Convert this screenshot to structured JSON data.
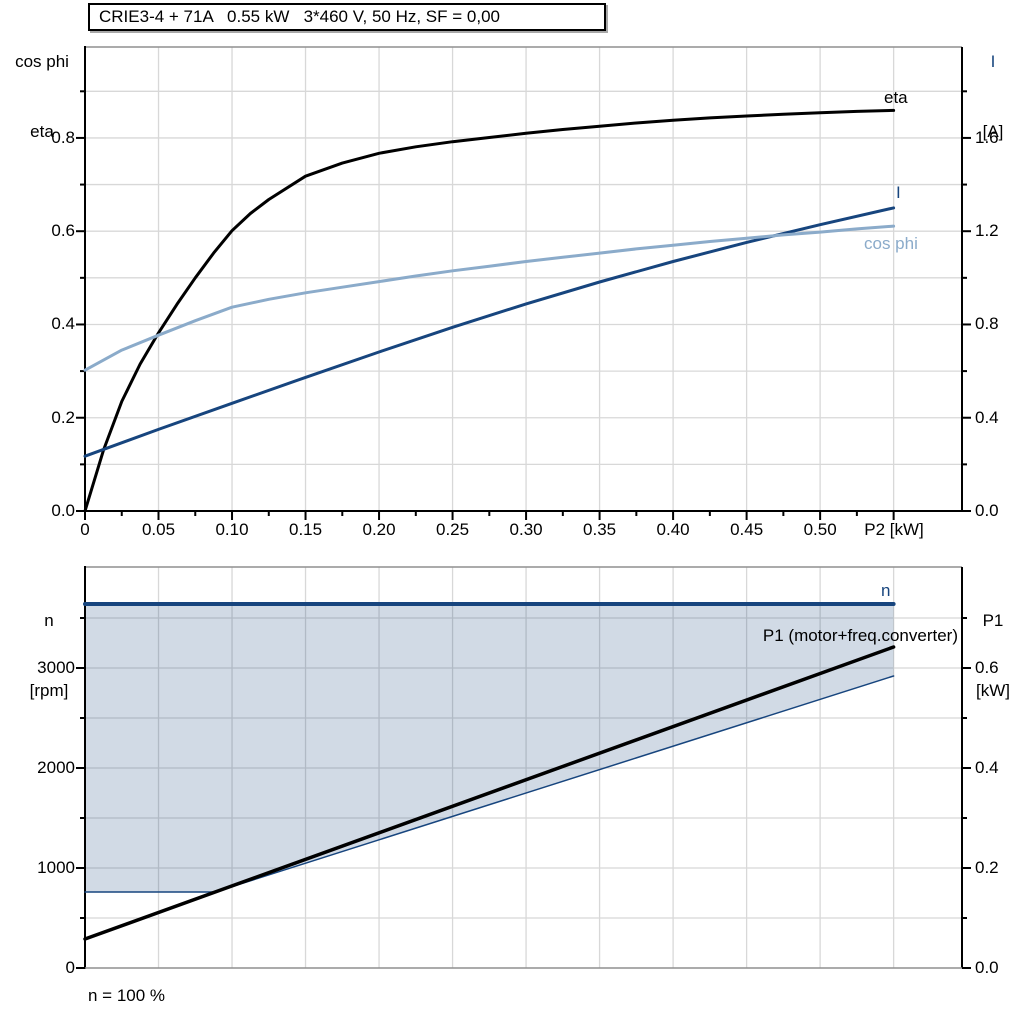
{
  "title_box": {
    "text": "CRIE3-4 + 71A   0.55 kW   3*460 V, 50 Hz, SF = 0,00"
  },
  "footer": {
    "text": "n = 100 %"
  },
  "colors": {
    "navy": "#17457E",
    "steel": "#8BABCA",
    "black": "#000000",
    "grid": "#D8D8D8",
    "frame": "#8F8F8F",
    "area_fill": "rgba(23,69,126,0.20)",
    "background": "#FFFFFF"
  },
  "chart_data": [
    {
      "type": "line",
      "xlabel": "P2 [kW]",
      "xlim": [
        0,
        0.5965
      ],
      "x_axis": {
        "tick_values": [
          0,
          0.05,
          0.1,
          0.15,
          0.2,
          0.25,
          0.3,
          0.35,
          0.4,
          0.45,
          0.5,
          0.55
        ],
        "tick_labels": [
          "0",
          "0.05",
          "0.10",
          "0.15",
          "0.20",
          "0.25",
          "0.30",
          "0.35",
          "0.40",
          "0.45",
          "0.50",
          ""
        ],
        "minor_step": 0.025,
        "minor_max": 0.55,
        "grid_step": 0.05,
        "grid_max": 0.55
      },
      "left_axis": {
        "header_lines": [
          "cos phi",
          "eta"
        ],
        "lim": [
          0,
          0.995
        ],
        "tick_values": [
          0,
          0.2,
          0.4,
          0.6,
          0.8
        ],
        "tick_labels": [
          "0.0",
          "0.2",
          "0.4",
          "0.6",
          "0.8"
        ],
        "minor_step": 0.1,
        "minor_max": 0.9,
        "grid_step": 0.1,
        "grid_max": 0.9
      },
      "right_axis": {
        "header_lines": [
          "I",
          "[A]"
        ],
        "lim": [
          0,
          1.99
        ],
        "tick_values": [
          0,
          0.4,
          0.8,
          1.2,
          1.6
        ],
        "tick_labels": [
          "0.0",
          "0.4",
          "0.8",
          "1.2",
          "1.6"
        ],
        "minor_step": 0.2,
        "minor_max": 1.8
      },
      "series": [
        {
          "name": "eta",
          "axis": "left",
          "color": "#000000",
          "width": 3,
          "points": [
            [
              0,
              0
            ],
            [
              0.0125,
              0.13
            ],
            [
              0.025,
              0.235
            ],
            [
              0.0375,
              0.315
            ],
            [
              0.05,
              0.382
            ],
            [
              0.0625,
              0.443
            ],
            [
              0.075,
              0.5
            ],
            [
              0.0875,
              0.553
            ],
            [
              0.1,
              0.601
            ],
            [
              0.1125,
              0.638
            ],
            [
              0.125,
              0.668
            ],
            [
              0.15,
              0.718
            ],
            [
              0.175,
              0.746
            ],
            [
              0.2,
              0.767
            ],
            [
              0.225,
              0.781
            ],
            [
              0.25,
              0.792
            ],
            [
              0.275,
              0.801
            ],
            [
              0.3,
              0.81
            ],
            [
              0.325,
              0.818
            ],
            [
              0.35,
              0.825
            ],
            [
              0.375,
              0.832
            ],
            [
              0.4,
              0.838
            ],
            [
              0.425,
              0.843
            ],
            [
              0.45,
              0.847
            ],
            [
              0.475,
              0.851
            ],
            [
              0.5,
              0.854
            ],
            [
              0.525,
              0.857
            ],
            [
              0.55,
              0.859
            ]
          ]
        },
        {
          "name": "I",
          "axis": "right",
          "color": "#17457E",
          "width": 3,
          "points": [
            [
              0,
              0.235
            ],
            [
              0.05,
              0.35
            ],
            [
              0.1,
              0.462
            ],
            [
              0.15,
              0.573
            ],
            [
              0.2,
              0.682
            ],
            [
              0.25,
              0.788
            ],
            [
              0.3,
              0.888
            ],
            [
              0.35,
              0.982
            ],
            [
              0.4,
              1.07
            ],
            [
              0.45,
              1.152
            ],
            [
              0.5,
              1.228
            ],
            [
              0.55,
              1.3
            ]
          ]
        },
        {
          "name": "cos phi",
          "axis": "left",
          "color": "#8BABCA",
          "width": 3,
          "points": [
            [
              0,
              0.302
            ],
            [
              0.025,
              0.345
            ],
            [
              0.05,
              0.377
            ],
            [
              0.075,
              0.408
            ],
            [
              0.1,
              0.437
            ],
            [
              0.125,
              0.454
            ],
            [
              0.15,
              0.468
            ],
            [
              0.175,
              0.48
            ],
            [
              0.2,
              0.492
            ],
            [
              0.225,
              0.504
            ],
            [
              0.25,
              0.515
            ],
            [
              0.275,
              0.525
            ],
            [
              0.3,
              0.535
            ],
            [
              0.325,
              0.544
            ],
            [
              0.35,
              0.553
            ],
            [
              0.375,
              0.562
            ],
            [
              0.4,
              0.57
            ],
            [
              0.425,
              0.578
            ],
            [
              0.45,
              0.585
            ],
            [
              0.475,
              0.592
            ],
            [
              0.5,
              0.598
            ],
            [
              0.525,
              0.605
            ],
            [
              0.55,
              0.611
            ]
          ]
        }
      ]
    },
    {
      "type": "area",
      "xlabel": "",
      "xlim": [
        0,
        0.5965
      ],
      "x_axis": {
        "tick_values": [],
        "tick_labels": [],
        "minor_step": 0,
        "minor_max": 0,
        "grid_step": 0.05,
        "grid_max": 0.55
      },
      "left_axis": {
        "header_lines": [
          "n",
          "[rpm]"
        ],
        "lim": [
          0,
          4010
        ],
        "tick_values": [
          0,
          1000,
          2000,
          3000
        ],
        "tick_labels": [
          "0",
          "1000",
          "2000",
          "3000"
        ],
        "minor_step": 500,
        "minor_max": 3500,
        "grid_step": 500,
        "grid_max": 3500
      },
      "right_axis": {
        "header_lines": [
          "P1",
          "[kW]"
        ],
        "lim": [
          0,
          0.802
        ],
        "tick_values": [
          0,
          0.2,
          0.4,
          0.6
        ],
        "tick_labels": [
          "0.0",
          "0.2",
          "0.4",
          "0.6"
        ],
        "minor_step": 0.1,
        "minor_max": 0.7
      },
      "area": {
        "axis": "left",
        "polygon": [
          [
            0,
            3640
          ],
          [
            0.55,
            3640
          ],
          [
            0.55,
            2920
          ],
          [
            0.0885,
            760
          ],
          [
            0,
            760
          ]
        ]
      },
      "series": [
        {
          "name": "n",
          "axis": "left",
          "color": "#17457E",
          "width": 4,
          "points": [
            [
              0,
              3640
            ],
            [
              0.55,
              3640
            ]
          ]
        },
        {
          "name": "speed-range-boundary",
          "axis": "left",
          "color": "#17457E",
          "width": 1.5,
          "points": [
            [
              0,
              760
            ],
            [
              0.0885,
              760
            ],
            [
              0.55,
              2920
            ]
          ]
        },
        {
          "name": "P1 (motor+freq.converter)",
          "axis": "right",
          "color": "#000000",
          "width": 3.5,
          "points": [
            [
              0,
              0.058
            ],
            [
              0.55,
              0.642
            ]
          ]
        }
      ],
      "footnote": "n = 100 %"
    }
  ]
}
